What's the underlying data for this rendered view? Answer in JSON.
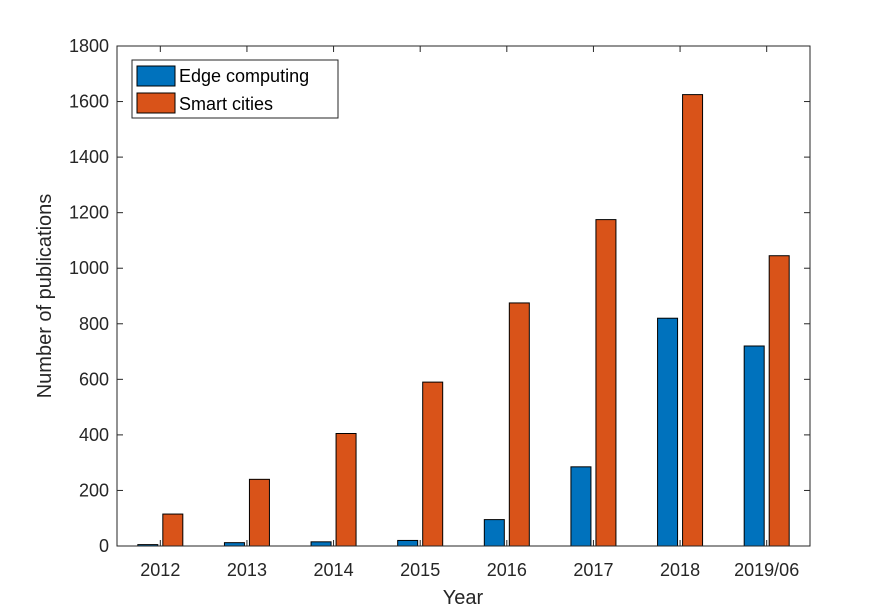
{
  "chart_data": {
    "type": "bar",
    "title": "",
    "xlabel": "Year",
    "ylabel": "Number of publications",
    "categories": [
      "2012",
      "2013",
      "2014",
      "2015",
      "2016",
      "2017",
      "2018",
      "2019/06"
    ],
    "series": [
      {
        "name": "Edge computing",
        "color": "#0072BD",
        "values": [
          5,
          12,
          15,
          20,
          95,
          285,
          820,
          720
        ]
      },
      {
        "name": "Smart cities",
        "color": "#D95319",
        "values": [
          115,
          240,
          405,
          590,
          875,
          1175,
          1625,
          1045
        ]
      }
    ],
    "ylim": [
      0,
      1800
    ],
    "yticks": [
      0,
      200,
      400,
      600,
      800,
      1000,
      1200,
      1400,
      1600,
      1800
    ],
    "grid": false,
    "legend_position": "top-left"
  }
}
